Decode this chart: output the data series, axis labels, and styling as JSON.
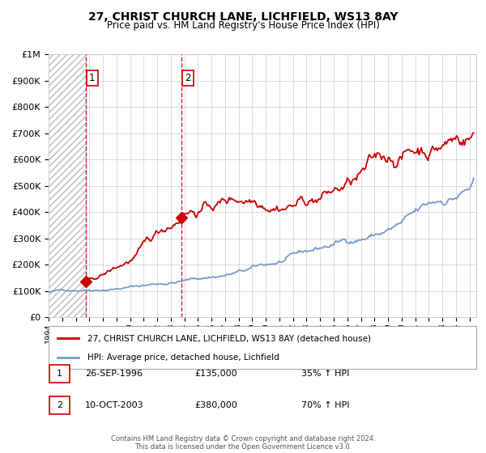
{
  "title": "27, CHRIST CHURCH LANE, LICHFIELD, WS13 8AY",
  "subtitle": "Price paid vs. HM Land Registry's House Price Index (HPI)",
  "legend_line1": "27, CHRIST CHURCH LANE, LICHFIELD, WS13 8AY (detached house)",
  "legend_line2": "HPI: Average price, detached house, Lichfield",
  "footnote": "Contains HM Land Registry data © Crown copyright and database right 2024.\nThis data is licensed under the Open Government Licence v3.0.",
  "sale1_label": "1",
  "sale1_date": "26-SEP-1996",
  "sale1_price": 135000,
  "sale1_year": 1996.73,
  "sale1_hpi_pct": "35% ↑ HPI",
  "sale2_label": "2",
  "sale2_date": "10-OCT-2003",
  "sale2_price": 380000,
  "sale2_year": 2003.78,
  "sale2_hpi_pct": "70% ↑ HPI",
  "ylim": [
    0,
    1000000
  ],
  "xlim_start": 1994.0,
  "xlim_end": 2025.5,
  "red_color": "#cc0000",
  "blue_color": "#7799cc",
  "background_color": "#ffffff",
  "grid_color": "#cccccc",
  "hatch_color": "#bbbbbb"
}
